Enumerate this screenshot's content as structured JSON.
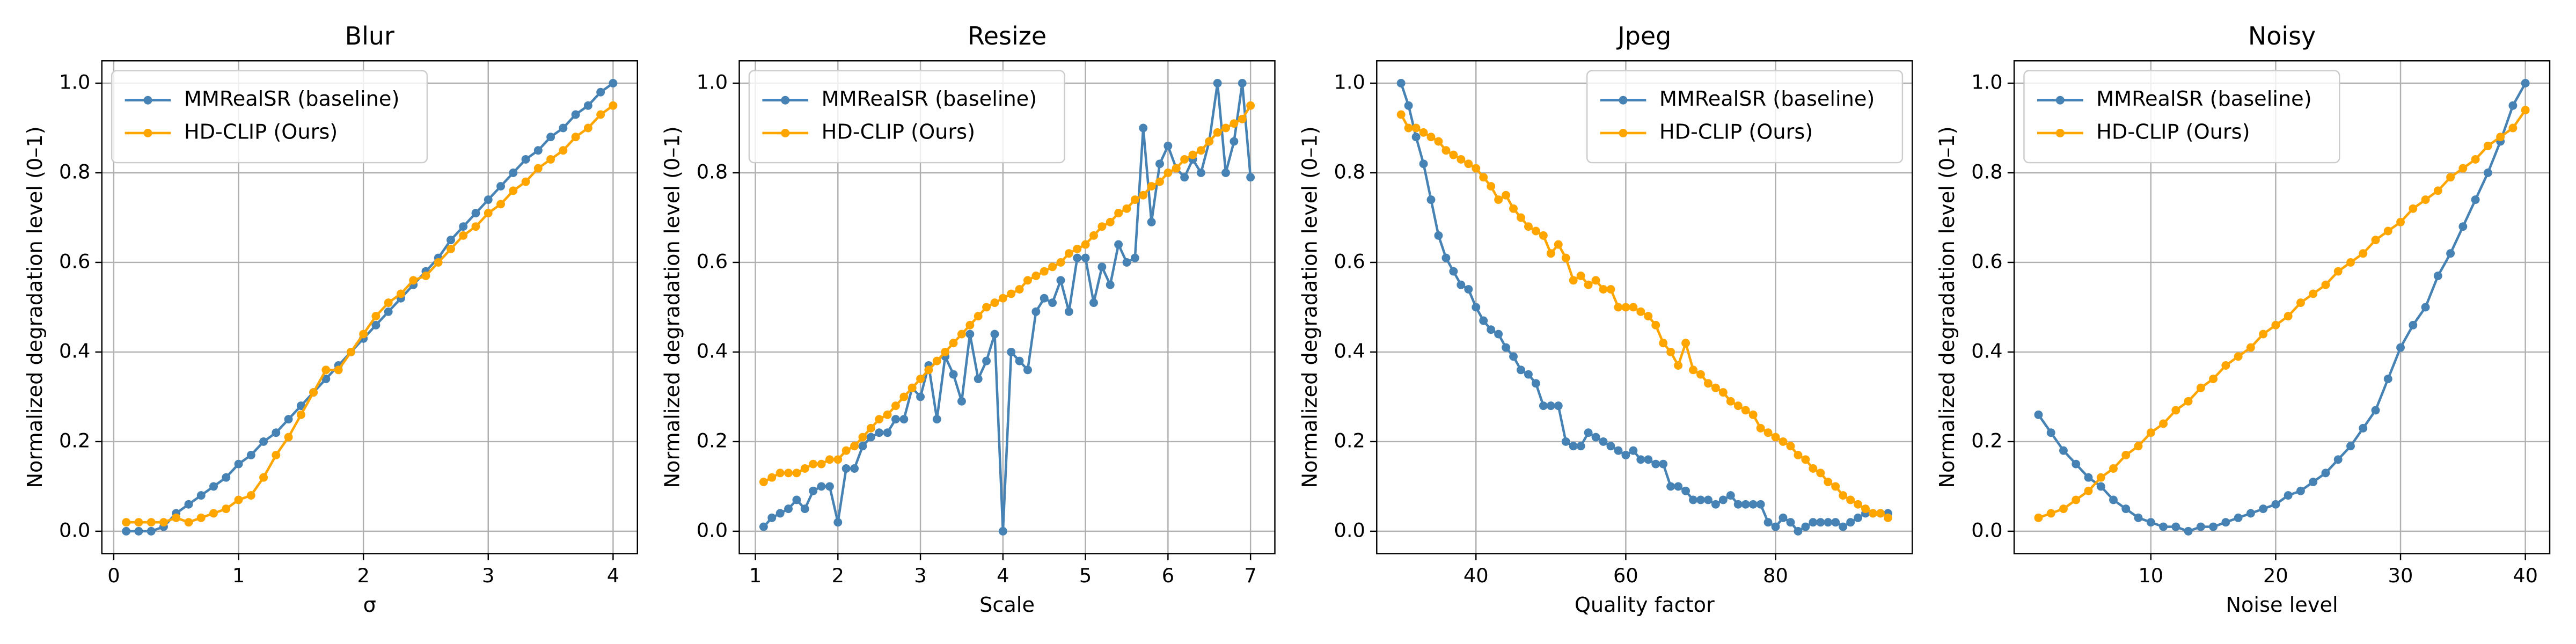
{
  "chart_data": [
    {
      "type": "line",
      "title": "Blur",
      "xlabel": "σ",
      "ylabel": "Normalized degradation level (0–1)",
      "x": [
        0.1,
        0.2,
        0.3,
        0.4,
        0.5,
        0.6,
        0.7,
        0.8,
        0.9,
        1.0,
        1.1,
        1.2,
        1.3,
        1.4,
        1.5,
        1.6,
        1.7,
        1.8,
        1.9,
        2.0,
        2.1,
        2.2,
        2.3,
        2.4,
        2.5,
        2.6,
        2.7,
        2.8,
        2.9,
        3.0,
        3.1,
        3.2,
        3.3,
        3.4,
        3.5,
        3.6,
        3.7,
        3.8,
        3.9,
        4.0
      ],
      "series": [
        {
          "name": "MMRealSR (baseline)",
          "color": "#4682b4",
          "values": [
            0,
            0,
            0,
            0.01,
            0.04,
            0.06,
            0.08,
            0.1,
            0.12,
            0.15,
            0.17,
            0.2,
            0.22,
            0.25,
            0.28,
            0.31,
            0.34,
            0.37,
            0.4,
            0.43,
            0.46,
            0.49,
            0.52,
            0.55,
            0.58,
            0.61,
            0.65,
            0.68,
            0.71,
            0.74,
            0.77,
            0.8,
            0.83,
            0.85,
            0.88,
            0.9,
            0.93,
            0.95,
            0.98,
            1.0
          ]
        },
        {
          "name": "HD-CLIP (Ours)",
          "color": "#ffa500",
          "values": [
            0.02,
            0.02,
            0.02,
            0.02,
            0.03,
            0.02,
            0.03,
            0.04,
            0.05,
            0.07,
            0.08,
            0.12,
            0.17,
            0.21,
            0.26,
            0.31,
            0.36,
            0.36,
            0.4,
            0.44,
            0.48,
            0.51,
            0.53,
            0.56,
            0.57,
            0.6,
            0.63,
            0.66,
            0.68,
            0.71,
            0.73,
            0.76,
            0.78,
            0.81,
            0.83,
            0.85,
            0.88,
            0.9,
            0.93,
            0.95
          ]
        }
      ],
      "xlim": [
        -0.095,
        4.195
      ],
      "ylim": [
        -0.05,
        1.05
      ],
      "xticks": [
        0,
        1,
        2,
        3,
        4
      ],
      "yticks": [
        {
          "value": 0,
          "label": "0.0"
        },
        0.2,
        0.4,
        0.6,
        0.8,
        {
          "value": 1,
          "label": "1.0"
        }
      ],
      "grid": true,
      "legend": "upper left"
    },
    {
      "type": "line",
      "title": "Resize",
      "xlabel": "Scale",
      "ylabel": "Normalized degradation level (0–1)",
      "x": [
        1.1,
        1.2,
        1.3,
        1.4,
        1.5,
        1.6,
        1.7,
        1.8,
        1.9,
        2.0,
        2.1,
        2.2,
        2.3,
        2.4,
        2.5,
        2.6,
        2.7,
        2.8,
        2.9,
        3.0,
        3.1,
        3.2,
        3.3,
        3.4,
        3.5,
        3.6,
        3.7,
        3.8,
        3.9,
        4.0,
        4.1,
        4.2,
        4.3,
        4.4,
        4.5,
        4.6,
        4.7,
        4.8,
        4.9,
        5.0,
        5.1,
        5.2,
        5.3,
        5.4,
        5.5,
        5.6,
        5.7,
        5.8,
        5.9,
        6.0,
        6.1,
        6.2,
        6.3,
        6.4,
        6.5,
        6.6,
        6.7,
        6.8,
        6.9,
        7.0
      ],
      "series": [
        {
          "name": "MMRealSR (baseline)",
          "color": "#4682b4",
          "values": [
            0.01,
            0.03,
            0.04,
            0.05,
            0.07,
            0.05,
            0.09,
            0.1,
            0.1,
            0.02,
            0.14,
            0.14,
            0.19,
            0.21,
            0.22,
            0.22,
            0.25,
            0.25,
            0.32,
            0.3,
            0.37,
            0.25,
            0.39,
            0.35,
            0.29,
            0.44,
            0.34,
            0.38,
            0.44,
            0.0,
            0.4,
            0.38,
            0.36,
            0.49,
            0.52,
            0.51,
            0.56,
            0.49,
            0.61,
            0.61,
            0.51,
            0.59,
            0.55,
            0.64,
            0.6,
            0.61,
            0.9,
            0.69,
            0.82,
            0.86,
            0.81,
            0.79,
            0.83,
            0.8,
            0.87,
            1.0,
            0.8,
            0.87,
            1.0,
            0.79
          ]
        },
        {
          "name": "HD-CLIP (Ours)",
          "color": "#ffa500",
          "values": [
            0.11,
            0.12,
            0.13,
            0.13,
            0.13,
            0.14,
            0.15,
            0.15,
            0.16,
            0.16,
            0.18,
            0.19,
            0.21,
            0.23,
            0.25,
            0.26,
            0.28,
            0.3,
            0.32,
            0.34,
            0.36,
            0.38,
            0.4,
            0.42,
            0.44,
            0.46,
            0.48,
            0.5,
            0.51,
            0.52,
            0.53,
            0.54,
            0.56,
            0.57,
            0.58,
            0.59,
            0.6,
            0.62,
            0.63,
            0.64,
            0.66,
            0.68,
            0.69,
            0.71,
            0.72,
            0.74,
            0.75,
            0.77,
            0.78,
            0.8,
            0.81,
            0.83,
            0.84,
            0.85,
            0.87,
            0.89,
            0.9,
            0.91,
            0.92,
            0.95
          ]
        }
      ],
      "xlim": [
        0.805,
        7.295
      ],
      "ylim": [
        -0.05,
        1.05
      ],
      "xticks": [
        1,
        2,
        3,
        4,
        5,
        6,
        7
      ],
      "yticks": [
        {
          "value": 0,
          "label": "0.0"
        },
        0.2,
        0.4,
        0.6,
        0.8,
        {
          "value": 1,
          "label": "1.0"
        }
      ],
      "grid": true,
      "legend": "upper left"
    },
    {
      "type": "line",
      "title": "Jpeg",
      "xlabel": "Quality factor",
      "ylabel": "Normalized degradation level (0–1)",
      "x": [
        30,
        31,
        32,
        33,
        34,
        35,
        36,
        37,
        38,
        39,
        40,
        41,
        42,
        43,
        44,
        45,
        46,
        47,
        48,
        49,
        50,
        51,
        52,
        53,
        54,
        55,
        56,
        57,
        58,
        59,
        60,
        61,
        62,
        63,
        64,
        65,
        66,
        67,
        68,
        69,
        70,
        71,
        72,
        73,
        74,
        75,
        76,
        77,
        78,
        79,
        80,
        81,
        82,
        83,
        84,
        85,
        86,
        87,
        88,
        89,
        90,
        91,
        92,
        93,
        94,
        95
      ],
      "series": [
        {
          "name": "MMRealSR (baseline)",
          "color": "#4682b4",
          "values": [
            1.0,
            0.95,
            0.88,
            0.82,
            0.74,
            0.66,
            0.61,
            0.58,
            0.55,
            0.54,
            0.5,
            0.47,
            0.45,
            0.44,
            0.41,
            0.39,
            0.36,
            0.35,
            0.33,
            0.28,
            0.28,
            0.28,
            0.2,
            0.19,
            0.19,
            0.22,
            0.21,
            0.2,
            0.19,
            0.18,
            0.17,
            0.18,
            0.16,
            0.16,
            0.15,
            0.15,
            0.1,
            0.1,
            0.09,
            0.07,
            0.07,
            0.07,
            0.06,
            0.07,
            0.08,
            0.06,
            0.06,
            0.06,
            0.06,
            0.02,
            0.01,
            0.03,
            0.02,
            0.0,
            0.01,
            0.02,
            0.02,
            0.02,
            0.02,
            0.01,
            0.02,
            0.03,
            0.04,
            0.04,
            0.04,
            0.04
          ]
        },
        {
          "name": "HD-CLIP (Ours)",
          "color": "#ffa500",
          "values": [
            0.93,
            0.9,
            0.9,
            0.89,
            0.88,
            0.87,
            0.85,
            0.84,
            0.83,
            0.82,
            0.81,
            0.79,
            0.77,
            0.74,
            0.75,
            0.72,
            0.7,
            0.68,
            0.67,
            0.66,
            0.62,
            0.64,
            0.61,
            0.56,
            0.57,
            0.55,
            0.56,
            0.54,
            0.54,
            0.5,
            0.5,
            0.5,
            0.49,
            0.48,
            0.46,
            0.42,
            0.4,
            0.37,
            0.42,
            0.36,
            0.35,
            0.33,
            0.32,
            0.31,
            0.29,
            0.28,
            0.27,
            0.26,
            0.23,
            0.22,
            0.21,
            0.2,
            0.19,
            0.17,
            0.16,
            0.14,
            0.13,
            0.11,
            0.1,
            0.08,
            0.07,
            0.06,
            0.05,
            0.04,
            0.04,
            0.03
          ]
        }
      ],
      "xlim": [
        26.75,
        98.25
      ],
      "ylim": [
        -0.05,
        1.05
      ],
      "xticks": [
        40,
        60,
        80
      ],
      "yticks": [
        {
          "value": 0,
          "label": "0.0"
        },
        0.2,
        0.4,
        0.6,
        0.8,
        {
          "value": 1,
          "label": "1.0"
        }
      ],
      "grid": true,
      "legend": "upper right"
    },
    {
      "type": "line",
      "title": "Noisy",
      "xlabel": "Noise level",
      "ylabel": "Normalized degradation level (0–1)",
      "x": [
        1,
        2,
        3,
        4,
        5,
        6,
        7,
        8,
        9,
        10,
        11,
        12,
        13,
        14,
        15,
        16,
        17,
        18,
        19,
        20,
        21,
        22,
        23,
        24,
        25,
        26,
        27,
        28,
        29,
        30,
        31,
        32,
        33,
        34,
        35,
        36,
        37,
        38,
        39,
        40
      ],
      "series": [
        {
          "name": "MMRealSR (baseline)",
          "color": "#4682b4",
          "values": [
            0.26,
            0.22,
            0.18,
            0.15,
            0.12,
            0.1,
            0.07,
            0.05,
            0.03,
            0.02,
            0.01,
            0.01,
            0.0,
            0.01,
            0.01,
            0.02,
            0.03,
            0.04,
            0.05,
            0.06,
            0.08,
            0.09,
            0.11,
            0.13,
            0.16,
            0.19,
            0.23,
            0.27,
            0.34,
            0.41,
            0.46,
            0.5,
            0.57,
            0.62,
            0.68,
            0.74,
            0.8,
            0.87,
            0.95,
            1.0
          ]
        },
        {
          "name": "HD-CLIP (Ours)",
          "color": "#ffa500",
          "values": [
            0.03,
            0.04,
            0.05,
            0.07,
            0.09,
            0.12,
            0.14,
            0.17,
            0.19,
            0.22,
            0.24,
            0.27,
            0.29,
            0.32,
            0.34,
            0.37,
            0.39,
            0.41,
            0.44,
            0.46,
            0.48,
            0.51,
            0.53,
            0.55,
            0.58,
            0.6,
            0.62,
            0.65,
            0.67,
            0.69,
            0.72,
            0.74,
            0.76,
            0.79,
            0.81,
            0.83,
            0.86,
            0.88,
            0.9,
            0.94
          ]
        }
      ],
      "xlim": [
        -0.95,
        41.95
      ],
      "ylim": [
        -0.05,
        1.05
      ],
      "xticks": [
        10,
        20,
        30,
        40
      ],
      "yticks": [
        {
          "value": 0,
          "label": "0.0"
        },
        0.2,
        0.4,
        0.6,
        0.8,
        {
          "value": 1,
          "label": "1.0"
        }
      ],
      "grid": true,
      "legend": "upper left"
    }
  ]
}
